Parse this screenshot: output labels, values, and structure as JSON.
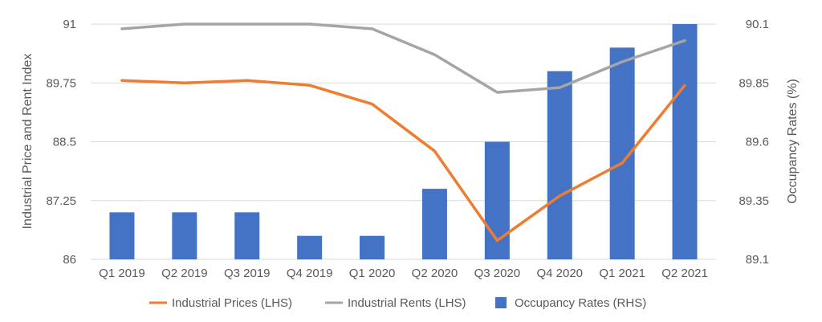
{
  "chart_data": {
    "type": "bar+line",
    "categories": [
      "Q1 2019",
      "Q2 2019",
      "Q3 2019",
      "Q4 2019",
      "Q1 2020",
      "Q2 2020",
      "Q3 2020",
      "Q4 2020",
      "Q1 2021",
      "Q2 2021"
    ],
    "series": [
      {
        "name": "Industrial Prices (LHS)",
        "type": "line",
        "axis": "left",
        "color": "#ED7D31",
        "values": [
          89.8,
          89.75,
          89.8,
          89.7,
          89.3,
          88.3,
          86.4,
          87.35,
          88.05,
          89.7
        ]
      },
      {
        "name": "Industrial Rents (LHS)",
        "type": "line",
        "axis": "left",
        "color": "#A5A5A5",
        "values": [
          90.9,
          91.0,
          91.0,
          91.0,
          90.9,
          90.35,
          89.55,
          89.65,
          90.2,
          90.65
        ]
      },
      {
        "name": "Occupancy Rates (RHS)",
        "type": "bar",
        "axis": "right",
        "color": "#4472C4",
        "values": [
          89.3,
          89.3,
          89.3,
          89.2,
          89.2,
          89.4,
          89.6,
          89.9,
          90.0,
          90.1
        ]
      }
    ],
    "left_axis": {
      "label": "Industrial Price and Rent Index",
      "min": 86,
      "max": 91,
      "ticks": [
        "91",
        "89.75",
        "88.5",
        "87.25",
        "86"
      ]
    },
    "right_axis": {
      "label": "Occupancy Rates (%)",
      "min": 89.1,
      "max": 90.1,
      "ticks": [
        "90.1",
        "89.85",
        "89.6",
        "89.35",
        "89.1"
      ]
    },
    "grid": true,
    "legend": "bottom"
  }
}
